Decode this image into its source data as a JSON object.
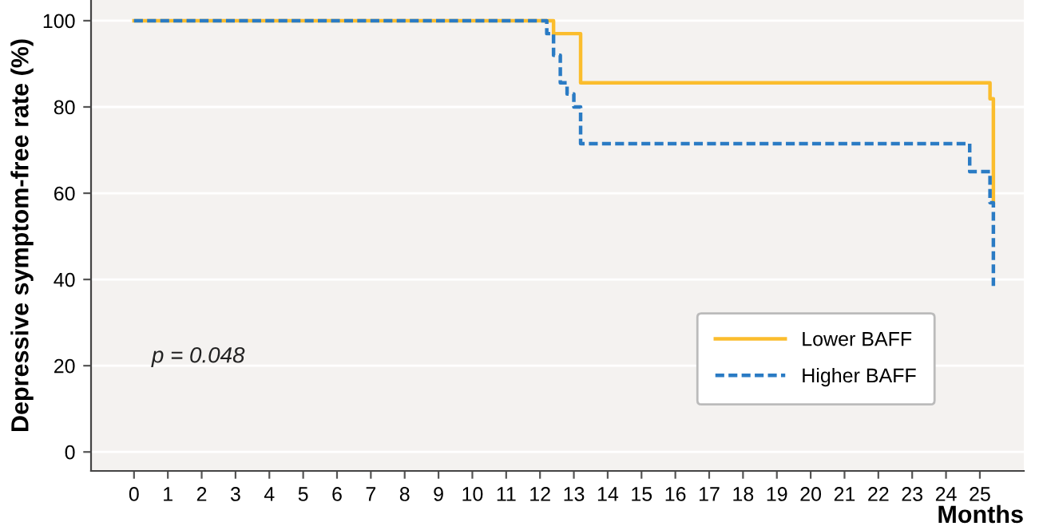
{
  "chart_data": {
    "type": "step",
    "xlabel": "Months",
    "ylabel": "Depressive symptom-free rate (%)",
    "annotations": [
      "p = 0.048"
    ],
    "series": [
      {
        "name": "Lower BAFF",
        "color": "#fbbd2d",
        "line_style": "solid",
        "x": [
          0,
          12.4,
          13.2,
          25.3,
          25.4
        ],
        "values": [
          100,
          97,
          85.6,
          81.9,
          57.8
        ]
      },
      {
        "name": "Higher BAFF",
        "color": "#2a7bc4",
        "line_style": "dashed",
        "x": [
          0,
          12.2,
          12.4,
          12.6,
          12.8,
          13,
          13.2,
          24.7,
          25.3,
          25.4
        ],
        "values": [
          100,
          97,
          92,
          85.6,
          83,
          80,
          71.5,
          65,
          57.8,
          38.5
        ]
      }
    ],
    "xlim": [
      -1.27,
      26.3
    ],
    "xticks": [
      0,
      1,
      2,
      3,
      4,
      5,
      6,
      7,
      8,
      9,
      10,
      11,
      12,
      13,
      14,
      15,
      16,
      17,
      18,
      19,
      20,
      21,
      22,
      23,
      24,
      25
    ],
    "ylim": [
      -4.4,
      104.8
    ],
    "yticks": [
      0,
      20,
      40,
      60,
      80,
      100
    ],
    "grid": "y",
    "legend": "lower right",
    "marker": "none"
  }
}
